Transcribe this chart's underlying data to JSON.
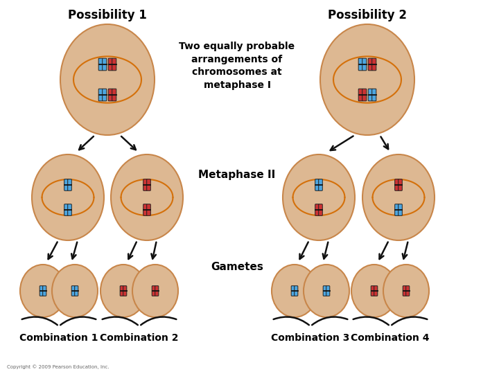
{
  "background_color": "#ffffff",
  "cell_fill": "#ddb892",
  "cell_edge": "#c8864a",
  "blue_chr": "#4da6e0",
  "red_chr": "#cc3333",
  "centromere_color": "#111111",
  "spindle_color": "#d4700a",
  "arrow_color": "#111111",
  "text_color": "#000000",
  "labels": {
    "poss1": "Possibility 1",
    "poss2": "Possibility 2",
    "center_text": "Two equally probable\narrangements of\nchromosomes at\nmetaphase I",
    "metaphase2": "Metaphase II",
    "gametes": "Gametes",
    "comb1": "Combination 1",
    "comb2": "Combination 2",
    "comb3": "Combination 3",
    "comb4": "Combination 4",
    "copyright": "Copyright © 2009 Pearson Education, Inc."
  },
  "layout": {
    "fig_w": 7.2,
    "fig_h": 5.4,
    "dpi": 100
  }
}
